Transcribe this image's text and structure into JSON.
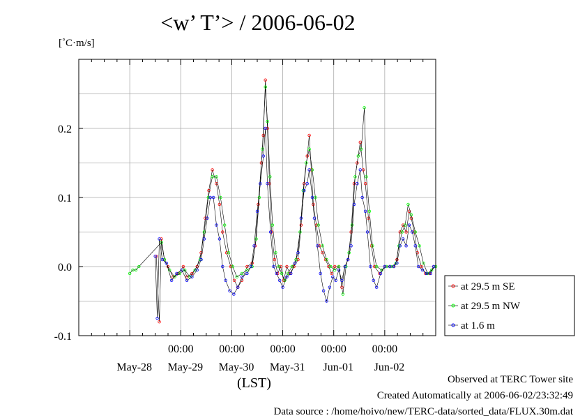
{
  "title": "<w’ T’> / 2006-06-02",
  "y_unit": "[˚C·m/s]",
  "x_unit": "(LST)",
  "footer": {
    "observed": "Observed at TERC Tower site",
    "created": "Created Automatically at 2006-06-02/23:32:49",
    "source": "Data source : /home/hoivo/new/TERC-data/sorted_data/FLUX.30m.dat"
  },
  "colors": {
    "series_se": "#ff0000",
    "series_nw": "#00ff00",
    "series_low": "#0000ff",
    "line": "#000000",
    "grid": "#aaaaaa"
  },
  "chart_data": {
    "type": "line",
    "title": "<w’ T’> / 2006-06-02",
    "ylabel": "[˚C·m/s]",
    "xlabel": "(LST)",
    "x_unit": "days (start = May-27 00:00 LST)",
    "xlim": [
      0,
      7
    ],
    "ylim": [
      -0.1,
      0.3
    ],
    "y_ticks": [
      -0.1,
      0.0,
      0.1,
      0.2
    ],
    "y_tick_labels": [
      "-0.1",
      "0.0",
      "0.1",
      "0.2"
    ],
    "x_major_ticks": [
      1,
      2,
      3,
      4,
      5,
      6
    ],
    "x_time_labels": [
      "00:00",
      "00:00",
      "00:00",
      "00:00",
      "00:00"
    ],
    "x_time_positions": [
      2,
      3,
      4,
      5,
      6
    ],
    "x_date_labels": [
      "May-28",
      "May-29",
      "May-30",
      "May-31",
      "Jun-01",
      "Jun-02"
    ],
    "x_date_positions": [
      1.5,
      2.5,
      3.5,
      4.5,
      5.5,
      6.5
    ],
    "grid": true,
    "legend_position": "right",
    "series": [
      {
        "name": "at 29.5 m SE",
        "color": "#ff0000",
        "points": [
          [
            1.52,
            0.015
          ],
          [
            1.58,
            -0.08
          ],
          [
            1.62,
            0.04
          ],
          [
            1.68,
            0.01
          ],
          [
            1.75,
            0.0
          ],
          [
            1.85,
            -0.015
          ],
          [
            1.95,
            -0.01
          ],
          [
            2.05,
            0.0
          ],
          [
            2.12,
            -0.015
          ],
          [
            2.22,
            -0.01
          ],
          [
            2.32,
            0.0
          ],
          [
            2.4,
            0.02
          ],
          [
            2.48,
            0.07
          ],
          [
            2.55,
            0.11
          ],
          [
            2.62,
            0.14
          ],
          [
            2.7,
            0.12
          ],
          [
            2.76,
            0.09
          ],
          [
            2.82,
            0.05
          ],
          [
            2.9,
            0.02
          ],
          [
            2.98,
            0.0
          ],
          [
            3.05,
            -0.02
          ],
          [
            3.12,
            -0.03
          ],
          [
            3.2,
            -0.02
          ],
          [
            3.3,
            0.0
          ],
          [
            3.4,
            0.005
          ],
          [
            3.46,
            0.03
          ],
          [
            3.52,
            0.09
          ],
          [
            3.58,
            0.15
          ],
          [
            3.62,
            0.19
          ],
          [
            3.66,
            0.27
          ],
          [
            3.7,
            0.2
          ],
          [
            3.74,
            0.12
          ],
          [
            3.78,
            0.05
          ],
          [
            3.84,
            0.01
          ],
          [
            3.9,
            -0.01
          ],
          [
            3.96,
            0.0
          ],
          [
            4.02,
            -0.02
          ],
          [
            4.08,
            0.0
          ],
          [
            4.14,
            -0.01
          ],
          [
            4.22,
            0.0
          ],
          [
            4.3,
            0.01
          ],
          [
            4.36,
            0.06
          ],
          [
            4.42,
            0.12
          ],
          [
            4.48,
            0.16
          ],
          [
            4.52,
            0.19
          ],
          [
            4.56,
            0.14
          ],
          [
            4.6,
            0.09
          ],
          [
            4.66,
            0.06
          ],
          [
            4.72,
            0.03
          ],
          [
            4.78,
            0.02
          ],
          [
            4.84,
            0.01
          ],
          [
            4.9,
            0.0
          ],
          [
            4.96,
            -0.01
          ],
          [
            5.02,
            0.0
          ],
          [
            5.1,
            0.0
          ],
          [
            5.16,
            -0.03
          ],
          [
            5.22,
            0.0
          ],
          [
            5.28,
            0.01
          ],
          [
            5.34,
            0.05
          ],
          [
            5.4,
            0.12
          ],
          [
            5.46,
            0.15
          ],
          [
            5.52,
            0.18
          ],
          [
            5.58,
            0.14
          ],
          [
            5.62,
            0.12
          ],
          [
            5.68,
            0.07
          ],
          [
            5.74,
            0.03
          ],
          [
            5.8,
            0.0
          ],
          [
            5.9,
            -0.01
          ],
          [
            6.0,
            0.0
          ],
          [
            6.1,
            0.0
          ],
          [
            6.18,
            0.0
          ],
          [
            6.24,
            0.01
          ],
          [
            6.3,
            0.05
          ],
          [
            6.36,
            0.06
          ],
          [
            6.42,
            0.05
          ],
          [
            6.48,
            0.08
          ],
          [
            6.52,
            0.07
          ],
          [
            6.58,
            0.05
          ],
          [
            6.64,
            0.02
          ],
          [
            6.72,
            0.0
          ],
          [
            6.8,
            -0.01
          ],
          [
            6.88,
            -0.01
          ],
          [
            6.96,
            0.0
          ]
        ]
      },
      {
        "name": "at 29.5 m NW",
        "color": "#00ff00",
        "points": [
          [
            1.0,
            -0.01
          ],
          [
            1.06,
            -0.005
          ],
          [
            1.12,
            -0.005
          ],
          [
            1.18,
            0.0
          ],
          [
            1.62,
            0.035
          ],
          [
            1.68,
            0.01
          ],
          [
            1.78,
            -0.005
          ],
          [
            1.88,
            -0.015
          ],
          [
            1.98,
            -0.01
          ],
          [
            2.08,
            -0.005
          ],
          [
            2.18,
            -0.015
          ],
          [
            2.28,
            -0.005
          ],
          [
            2.38,
            0.01
          ],
          [
            2.46,
            0.05
          ],
          [
            2.54,
            0.1
          ],
          [
            2.62,
            0.13
          ],
          [
            2.7,
            0.13
          ],
          [
            2.78,
            0.1
          ],
          [
            2.86,
            0.06
          ],
          [
            2.94,
            0.02
          ],
          [
            3.02,
            0.0
          ],
          [
            3.1,
            -0.015
          ],
          [
            3.2,
            -0.01
          ],
          [
            3.3,
            -0.005
          ],
          [
            3.4,
            0.0
          ],
          [
            3.48,
            0.04
          ],
          [
            3.54,
            0.1
          ],
          [
            3.6,
            0.17
          ],
          [
            3.66,
            0.26
          ],
          [
            3.7,
            0.21
          ],
          [
            3.75,
            0.13
          ],
          [
            3.8,
            0.06
          ],
          [
            3.86,
            0.02
          ],
          [
            3.92,
            0.0
          ],
          [
            3.98,
            -0.01
          ],
          [
            4.04,
            -0.02
          ],
          [
            4.1,
            -0.01
          ],
          [
            4.18,
            0.0
          ],
          [
            4.26,
            0.01
          ],
          [
            4.34,
            0.05
          ],
          [
            4.4,
            0.11
          ],
          [
            4.46,
            0.15
          ],
          [
            4.52,
            0.17
          ],
          [
            4.58,
            0.14
          ],
          [
            4.64,
            0.1
          ],
          [
            4.7,
            0.06
          ],
          [
            4.78,
            0.03
          ],
          [
            4.86,
            0.01
          ],
          [
            4.94,
            0.0
          ],
          [
            5.02,
            -0.005
          ],
          [
            5.1,
            0.0
          ],
          [
            5.18,
            -0.04
          ],
          [
            5.24,
            0.0
          ],
          [
            5.3,
            0.02
          ],
          [
            5.36,
            0.06
          ],
          [
            5.42,
            0.13
          ],
          [
            5.48,
            0.16
          ],
          [
            5.54,
            0.17
          ],
          [
            5.6,
            0.23
          ],
          [
            5.64,
            0.13
          ],
          [
            5.7,
            0.08
          ],
          [
            5.76,
            0.03
          ],
          [
            5.84,
            0.0
          ],
          [
            5.94,
            -0.005
          ],
          [
            6.04,
            0.0
          ],
          [
            6.14,
            0.0
          ],
          [
            6.22,
            0.005
          ],
          [
            6.28,
            0.03
          ],
          [
            6.34,
            0.05
          ],
          [
            6.4,
            0.06
          ],
          [
            6.46,
            0.09
          ],
          [
            6.52,
            0.075
          ],
          [
            6.6,
            0.05
          ],
          [
            6.68,
            0.03
          ],
          [
            6.76,
            0.005
          ],
          [
            6.84,
            -0.01
          ],
          [
            6.92,
            -0.005
          ],
          [
            7.0,
            0.0
          ]
        ]
      },
      {
        "name": "at 1.6 m",
        "color": "#0000ff",
        "points": [
          [
            1.5,
            0.015
          ],
          [
            1.54,
            -0.075
          ],
          [
            1.58,
            0.04
          ],
          [
            1.64,
            0.01
          ],
          [
            1.72,
            0.005
          ],
          [
            1.82,
            -0.02
          ],
          [
            1.92,
            -0.01
          ],
          [
            2.02,
            -0.005
          ],
          [
            2.12,
            -0.02
          ],
          [
            2.22,
            -0.015
          ],
          [
            2.32,
            -0.005
          ],
          [
            2.4,
            0.01
          ],
          [
            2.46,
            0.04
          ],
          [
            2.52,
            0.07
          ],
          [
            2.58,
            0.1
          ],
          [
            2.64,
            0.1
          ],
          [
            2.7,
            0.06
          ],
          [
            2.76,
            0.04
          ],
          [
            2.82,
            0.0
          ],
          [
            2.88,
            -0.02
          ],
          [
            2.96,
            -0.035
          ],
          [
            3.04,
            -0.04
          ],
          [
            3.12,
            -0.03
          ],
          [
            3.2,
            -0.015
          ],
          [
            3.3,
            -0.01
          ],
          [
            3.38,
            0.0
          ],
          [
            3.44,
            0.03
          ],
          [
            3.5,
            0.08
          ],
          [
            3.56,
            0.12
          ],
          [
            3.62,
            0.16
          ],
          [
            3.66,
            0.2
          ],
          [
            3.7,
            0.12
          ],
          [
            3.76,
            0.05
          ],
          [
            3.82,
            0.0
          ],
          [
            3.88,
            -0.01
          ],
          [
            3.94,
            -0.02
          ],
          [
            4.0,
            -0.03
          ],
          [
            4.08,
            -0.015
          ],
          [
            4.16,
            -0.01
          ],
          [
            4.24,
            0.005
          ],
          [
            4.3,
            0.02
          ],
          [
            4.36,
            0.07
          ],
          [
            4.42,
            0.11
          ],
          [
            4.48,
            0.12
          ],
          [
            4.52,
            0.14
          ],
          [
            4.58,
            0.1
          ],
          [
            4.62,
            0.07
          ],
          [
            4.68,
            0.03
          ],
          [
            4.74,
            -0.01
          ],
          [
            4.8,
            -0.035
          ],
          [
            4.86,
            -0.05
          ],
          [
            4.92,
            -0.03
          ],
          [
            4.98,
            -0.015
          ],
          [
            5.04,
            -0.02
          ],
          [
            5.1,
            -0.005
          ],
          [
            5.16,
            -0.02
          ],
          [
            5.22,
            0.0
          ],
          [
            5.28,
            0.01
          ],
          [
            5.34,
            0.03
          ],
          [
            5.4,
            0.09
          ],
          [
            5.46,
            0.12
          ],
          [
            5.52,
            0.14
          ],
          [
            5.56,
            0.1
          ],
          [
            5.62,
            0.08
          ],
          [
            5.66,
            0.05
          ],
          [
            5.72,
            0.0
          ],
          [
            5.78,
            -0.02
          ],
          [
            5.84,
            -0.03
          ],
          [
            5.92,
            -0.01
          ],
          [
            6.0,
            0.0
          ],
          [
            6.1,
            0.0
          ],
          [
            6.18,
            0.0
          ],
          [
            6.24,
            0.005
          ],
          [
            6.3,
            0.03
          ],
          [
            6.36,
            0.04
          ],
          [
            6.42,
            0.03
          ],
          [
            6.48,
            0.06
          ],
          [
            6.54,
            0.05
          ],
          [
            6.6,
            0.03
          ],
          [
            6.66,
            0.0
          ],
          [
            6.74,
            -0.005
          ],
          [
            6.82,
            -0.01
          ],
          [
            6.9,
            -0.01
          ],
          [
            6.96,
            0.0
          ]
        ]
      }
    ]
  }
}
